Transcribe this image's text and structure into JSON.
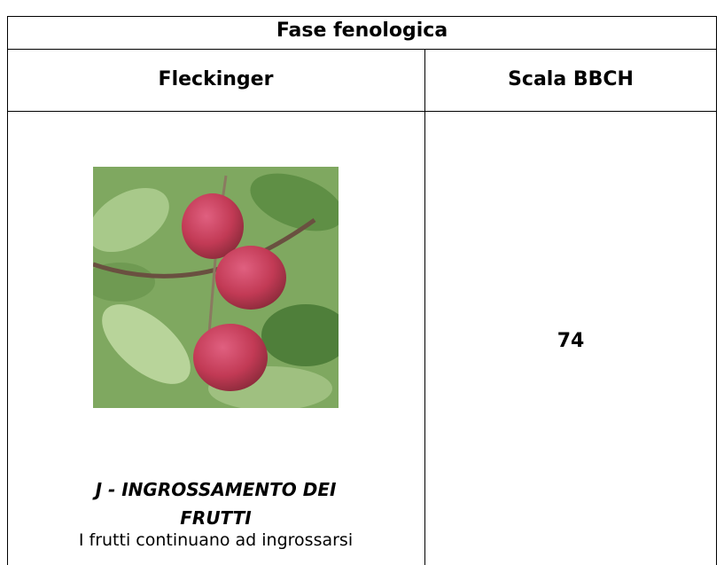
{
  "table": {
    "title": "Fase fenologica",
    "headers": [
      "Fleckinger",
      "Scala BBCH"
    ],
    "rows": [
      [
        {
          "title": "J - INGROSSAMENTO DEI FRUTTI",
          "description": "I frutti continuano ad ingrossarsi"
        },
        "74"
      ]
    ]
  }
}
